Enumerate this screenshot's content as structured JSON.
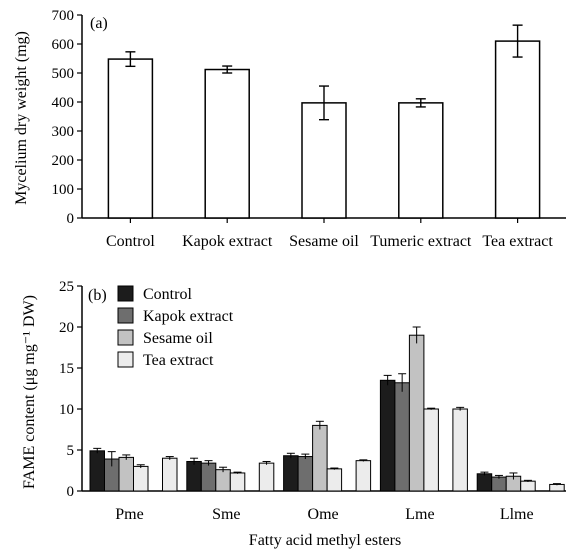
{
  "chart_data": [
    {
      "type": "bar",
      "panel_label": "(a)",
      "title": "",
      "xlabel": "",
      "ylabel": "Mycelium dry weight (mg)",
      "ylim": [
        0,
        700
      ],
      "yticks": [
        "0",
        "100",
        "200",
        "300",
        "400",
        "500",
        "600",
        "700"
      ],
      "categories": [
        "Control",
        "Kapok extract",
        "Sesame oil",
        "Tumeric extract",
        "Tea extract"
      ],
      "values": [
        548,
        512,
        397,
        397,
        610
      ],
      "errors": [
        25,
        12,
        58,
        14,
        55
      ],
      "bar_color": "#ffffff",
      "grid": false
    },
    {
      "type": "bar",
      "panel_label": "(b)",
      "title": "",
      "xlabel": "Fatty acid methyl esters",
      "ylabel": "FAME content (μg mg⁻¹ DW)",
      "ylim": [
        0,
        25
      ],
      "yticks": [
        "0",
        "5",
        "10",
        "15",
        "20",
        "25"
      ],
      "categories": [
        "Pme",
        "Sme",
        "Ome",
        "Lme",
        "Llme"
      ],
      "bars_per_group": 6,
      "legend_position": "top-left",
      "grid": false,
      "series": [
        {
          "name": "Control",
          "color": "#1c1c1c",
          "values": [
            4.9,
            3.6,
            4.3,
            13.5,
            2.1
          ],
          "errors": [
            0.3,
            0.4,
            0.3,
            0.6,
            0.2
          ],
          "legend_index": 0,
          "group_slot": 0
        },
        {
          "name": "Kapok extract",
          "color": "#6e6e6e",
          "values": [
            3.9,
            3.4,
            4.2,
            13.2,
            1.7
          ],
          "errors": [
            0.9,
            0.3,
            0.3,
            1.1,
            0.2
          ],
          "legend_index": 1,
          "group_slot": 1
        },
        {
          "name": "Sesame oil",
          "color": "#c2c2c2",
          "values": [
            4.1,
            2.6,
            8.0,
            19.0,
            1.8
          ],
          "errors": [
            0.3,
            0.3,
            0.5,
            1.0,
            0.4
          ],
          "legend_index": 2,
          "group_slot": 2
        },
        {
          "name": "Tea extract",
          "color": "#ececec",
          "values": [
            4.0,
            3.4,
            3.7,
            10.0,
            0.8
          ],
          "errors": [
            0.2,
            0.2,
            0.1,
            0.2,
            0.1
          ],
          "legend_index": 3,
          "group_slot": 5
        },
        {
          "name": "",
          "color": "#ececec",
          "values": [
            3.0,
            2.2,
            2.7,
            10.0,
            1.2
          ],
          "errors": [
            0.2,
            0.1,
            0.1,
            0.1,
            0.1
          ],
          "legend_index": null,
          "group_slot": 3
        }
      ]
    }
  ]
}
